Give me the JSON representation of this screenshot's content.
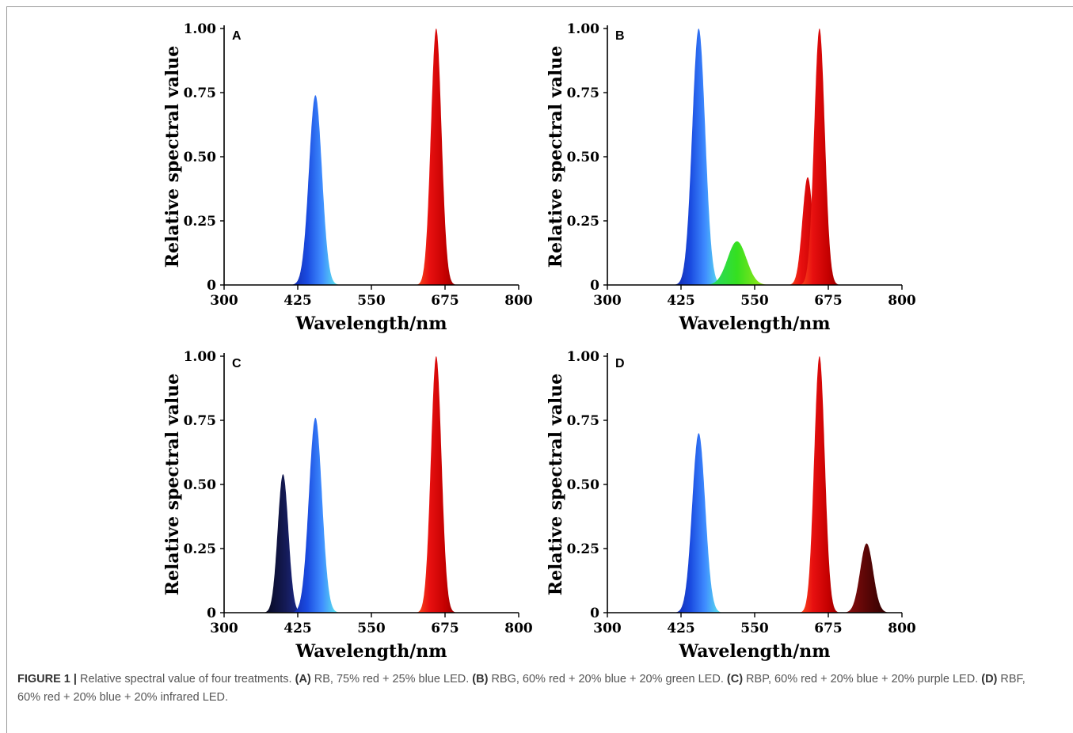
{
  "caption": {
    "figure_label": "FIGURE 1 |",
    "intro": " Relative spectral value of four treatments. ",
    "items": [
      {
        "label": "(A)",
        "text": " RB, 75% red + 25% blue LED. "
      },
      {
        "label": "(B)",
        "text": " RBG, 60% red + 20% blue + 20% green LED. "
      },
      {
        "label": "(C)",
        "text": " RBP, 60% red + 20% blue + 20% purple LED. "
      },
      {
        "label": "(D)",
        "text": " RBF, 60% red + 20% blue + 20% infrared LED."
      }
    ]
  },
  "chart_data": [
    {
      "type": "area",
      "panel": "A",
      "xlabel": "Wavelength/nm",
      "ylabel": "Relative spectral value",
      "xlim": [
        300,
        800
      ],
      "ylim": [
        0,
        1
      ],
      "x_ticks": [
        "300",
        "425",
        "550",
        "675",
        "800"
      ],
      "y_ticks": [
        "0",
        "0.25",
        "0.50",
        "0.75",
        "1.00"
      ],
      "grid": false,
      "peaks": [
        {
          "color": "blue",
          "center_nm": 455,
          "height": 0.74
        },
        {
          "color": "red",
          "center_nm": 660,
          "height": 1.0
        }
      ]
    },
    {
      "type": "area",
      "panel": "B",
      "xlabel": "Wavelength/nm",
      "ylabel": "Relative spectral value",
      "xlim": [
        300,
        800
      ],
      "ylim": [
        0,
        1
      ],
      "x_ticks": [
        "300",
        "425",
        "550",
        "675",
        "800"
      ],
      "y_ticks": [
        "0",
        "0.25",
        "0.50",
        "0.75",
        "1.00"
      ],
      "grid": false,
      "peaks": [
        {
          "color": "blue",
          "center_nm": 455,
          "height": 1.0
        },
        {
          "color": "green",
          "center_nm": 520,
          "height": 0.17
        },
        {
          "color": "red",
          "center_nm": 640,
          "height": 0.42
        },
        {
          "color": "red",
          "center_nm": 660,
          "height": 1.0
        }
      ]
    },
    {
      "type": "area",
      "panel": "C",
      "xlabel": "Wavelength/nm",
      "ylabel": "Relative spectral value",
      "xlim": [
        300,
        800
      ],
      "ylim": [
        0,
        1
      ],
      "x_ticks": [
        "300",
        "425",
        "550",
        "675",
        "800"
      ],
      "y_ticks": [
        "0",
        "0.25",
        "0.50",
        "0.75",
        "1.00"
      ],
      "grid": false,
      "peaks": [
        {
          "color": "purple",
          "center_nm": 400,
          "height": 0.54
        },
        {
          "color": "blue",
          "center_nm": 455,
          "height": 0.76
        },
        {
          "color": "red",
          "center_nm": 660,
          "height": 1.0
        }
      ]
    },
    {
      "type": "area",
      "panel": "D",
      "xlabel": "Wavelength/nm",
      "ylabel": "Relative spectral value",
      "xlim": [
        300,
        800
      ],
      "ylim": [
        0,
        1
      ],
      "x_ticks": [
        "300",
        "425",
        "550",
        "675",
        "800"
      ],
      "y_ticks": [
        "0",
        "0.25",
        "0.50",
        "0.75",
        "1.00"
      ],
      "grid": false,
      "peaks": [
        {
          "color": "blue",
          "center_nm": 455,
          "height": 0.7
        },
        {
          "color": "red",
          "center_nm": 660,
          "height": 1.0
        },
        {
          "color": "infrared",
          "center_nm": 740,
          "height": 0.27
        }
      ]
    }
  ]
}
